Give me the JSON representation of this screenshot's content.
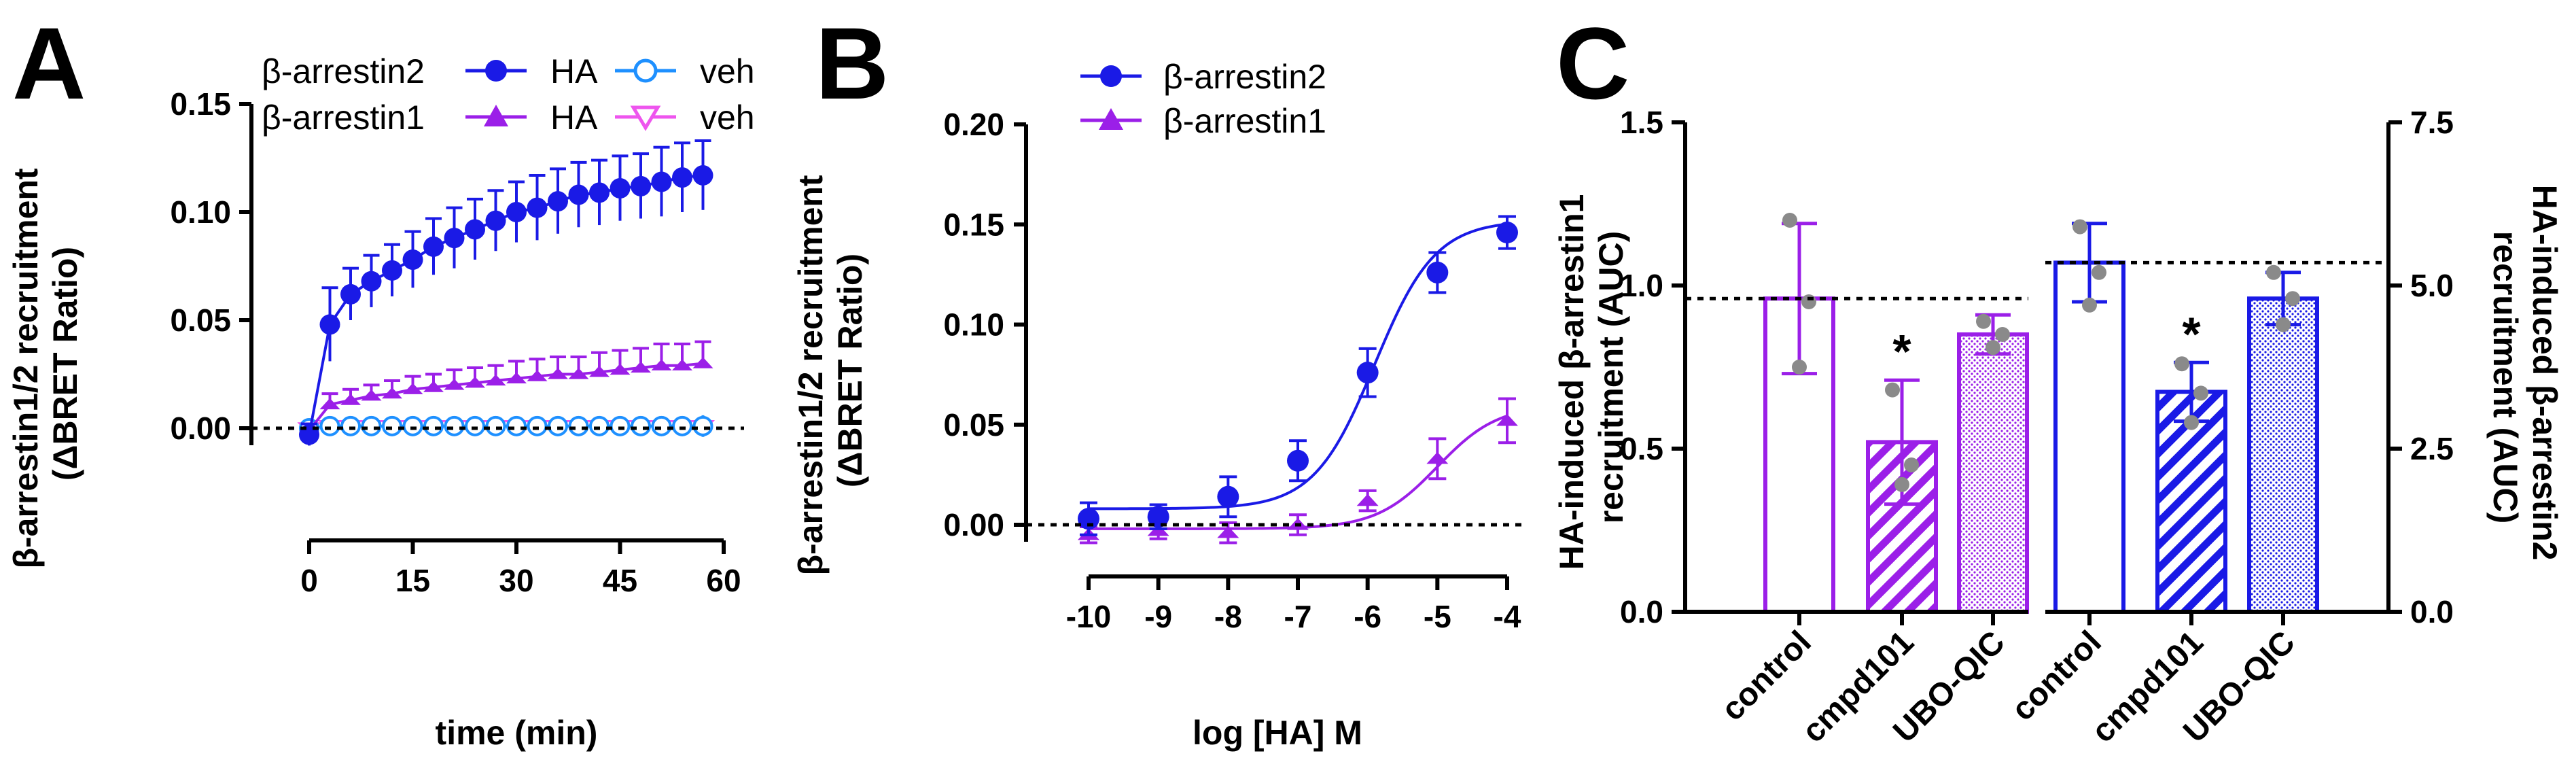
{
  "panels": {
    "a": {
      "letter": "A"
    },
    "b": {
      "letter": "B"
    },
    "c": {
      "letter": "C"
    }
  },
  "colors": {
    "arrestin2": "#1a1ae6",
    "arrestin1": "#9b1fe8",
    "veh2": "#1e90ff",
    "veh1": "#ee55ee",
    "point_gray": "#8a8a8a"
  },
  "chart_data": [
    {
      "type": "line",
      "panel": "A",
      "title": "",
      "xlabel": "time (min)",
      "ylabel": "β-arrestin1/2 recruitment (ΔBRET Ratio)",
      "xlim": [
        0,
        60
      ],
      "ylim": [
        0,
        0.15
      ],
      "x_ticks": [
        0,
        15,
        30,
        45,
        60
      ],
      "x_tick_labels": [
        "0",
        "15",
        "30",
        "45",
        "60"
      ],
      "y_ticks": [
        0,
        0.05,
        0.1,
        0.15
      ],
      "y_tick_labels": [
        "0.00",
        "0.05",
        "0.10",
        "0.15"
      ],
      "legend": {
        "row_labels": [
          "β-arrestin2",
          "β-arrestin1"
        ],
        "treated_label": "HA",
        "vehicle_label": "veh"
      },
      "x": [
        0,
        3,
        6,
        9,
        12,
        15,
        18,
        21,
        24,
        27,
        30,
        33,
        36,
        39,
        42,
        45,
        48,
        51,
        54,
        57
      ],
      "series": [
        {
          "name": "β-arrestin2 HA",
          "marker": "filled-circle",
          "values": [
            -0.003,
            0.048,
            0.062,
            0.068,
            0.073,
            0.078,
            0.084,
            0.088,
            0.092,
            0.096,
            0.1,
            0.102,
            0.105,
            0.108,
            0.109,
            0.111,
            0.112,
            0.114,
            0.116,
            0.117
          ],
          "errors": [
            0.005,
            0.017,
            0.012,
            0.012,
            0.012,
            0.013,
            0.013,
            0.014,
            0.014,
            0.014,
            0.014,
            0.015,
            0.015,
            0.015,
            0.015,
            0.015,
            0.015,
            0.016,
            0.016,
            0.016
          ]
        },
        {
          "name": "β-arrestin1 HA",
          "marker": "filled-triangle",
          "values": [
            -0.001,
            0.011,
            0.013,
            0.015,
            0.016,
            0.018,
            0.019,
            0.02,
            0.021,
            0.022,
            0.023,
            0.024,
            0.025,
            0.025,
            0.026,
            0.027,
            0.028,
            0.029,
            0.029,
            0.03
          ],
          "errors": [
            0.003,
            0.005,
            0.005,
            0.005,
            0.006,
            0.006,
            0.006,
            0.007,
            0.007,
            0.007,
            0.008,
            0.008,
            0.008,
            0.008,
            0.009,
            0.009,
            0.009,
            0.01,
            0.01,
            0.01
          ]
        },
        {
          "name": "β-arrestin2 veh",
          "marker": "open-circle",
          "values": [
            0,
            0.001,
            0.001,
            0.001,
            0.001,
            0.001,
            0.001,
            0.001,
            0.001,
            0.001,
            0.001,
            0.001,
            0.001,
            0.001,
            0.001,
            0.001,
            0.001,
            0.001,
            0.001,
            0.001
          ],
          "errors": [
            0.002,
            0.002,
            0.002,
            0.002,
            0.002,
            0.002,
            0.002,
            0.002,
            0.003,
            0.003,
            0.003,
            0.003,
            0.003,
            0.003,
            0.003,
            0.004,
            0.004,
            0.004,
            0.004,
            0.005
          ]
        },
        {
          "name": "β-arrestin1 veh",
          "marker": "open-triangle",
          "values": [
            0,
            0.001,
            0.001,
            0.001,
            0.001,
            0.001,
            0.001,
            0.001,
            0.001,
            0.001,
            0.001,
            0.001,
            0.001,
            0.001,
            0.001,
            0.001,
            0.001,
            0.001,
            0.001,
            0.001
          ],
          "errors": [
            0.002,
            0.002,
            0.002,
            0.002,
            0.002,
            0.002,
            0.002,
            0.002,
            0.002,
            0.002,
            0.002,
            0.002,
            0.002,
            0.002,
            0.002,
            0.002,
            0.002,
            0.002,
            0.002,
            0.002
          ]
        }
      ]
    },
    {
      "type": "scatter",
      "panel": "B",
      "title": "",
      "xlabel": "log [HA] M",
      "ylabel": "β-arrestin1/2 recruitment (ΔBRET Ratio)",
      "xlim": [
        -10,
        -4
      ],
      "ylim": [
        0,
        0.2
      ],
      "x_ticks": [
        -10,
        -9,
        -8,
        -7,
        -6,
        -5,
        -4
      ],
      "x_tick_labels": [
        "-10",
        "-9",
        "-8",
        "-7",
        "-6",
        "-5",
        "-4"
      ],
      "y_ticks": [
        0,
        0.05,
        0.1,
        0.15,
        0.2
      ],
      "y_tick_labels": [
        "0.00",
        "0.05",
        "0.10",
        "0.15",
        "0.20"
      ],
      "legend": [
        "β-arrestin2",
        "β-arrestin1"
      ],
      "x": [
        -10,
        -9,
        -8,
        -7,
        -6,
        -5,
        -4
      ],
      "series": [
        {
          "name": "β-arrestin2",
          "marker": "filled-circle",
          "values": [
            0.003,
            0.004,
            0.014,
            0.032,
            0.076,
            0.126,
            0.146
          ],
          "errors": [
            0.008,
            0.006,
            0.01,
            0.01,
            0.012,
            0.01,
            0.008
          ],
          "fit": {
            "bottom": 0.008,
            "top": 0.152,
            "logEC50": -5.9
          }
        },
        {
          "name": "β-arrestin1",
          "marker": "filled-triangle",
          "values": [
            -0.005,
            -0.003,
            -0.004,
            0.0,
            0.012,
            0.033,
            0.052
          ],
          "errors": [
            0.004,
            0.004,
            0.005,
            0.005,
            0.005,
            0.01,
            0.011
          ],
          "fit": {
            "bottom": -0.002,
            "top": 0.06,
            "logEC50": -5.0
          }
        }
      ]
    },
    {
      "type": "bar",
      "panel": "C",
      "title": "",
      "categories": [
        "control",
        "cmpd101",
        "UBO-QIC"
      ],
      "left_axis": {
        "label": "HA-induced β-arrestin1 recruitment (AUC)",
        "ylim": [
          0,
          1.5
        ],
        "ticks": [
          0,
          0.5,
          1,
          1.5
        ],
        "tick_labels": [
          "0.0",
          "0.5",
          "1.0",
          "1.5"
        ]
      },
      "right_axis": {
        "label": "HA-induced β-arrestin2 recruitment (AUC)",
        "ylim": [
          0,
          7.5
        ],
        "ticks": [
          0,
          2.5,
          5,
          7.5
        ],
        "tick_labels": [
          "0.0",
          "2.5",
          "5.0",
          "7.5"
        ]
      },
      "series": [
        {
          "name": "β-arrestin1",
          "axis": "left",
          "values": [
            0.96,
            0.52,
            0.85
          ],
          "errors": [
            0.23,
            0.19,
            0.06
          ],
          "points": [
            [
              1.2,
              0.95,
              0.75
            ],
            [
              0.68,
              0.45,
              0.39
            ],
            [
              0.89,
              0.85,
              0.81
            ]
          ],
          "significance": [
            "",
            "*",
            ""
          ],
          "reference_line": 0.96
        },
        {
          "name": "β-arrestin2",
          "axis": "right",
          "values": [
            5.35,
            3.37,
            4.8
          ],
          "errors": [
            0.6,
            0.45,
            0.4
          ],
          "points": [
            [
              5.9,
              5.2,
              4.7
            ],
            [
              3.8,
              3.35,
              2.9
            ],
            [
              5.2,
              4.8,
              4.4
            ]
          ],
          "significance": [
            "",
            "*",
            ""
          ],
          "reference_line": 5.35
        }
      ]
    }
  ]
}
